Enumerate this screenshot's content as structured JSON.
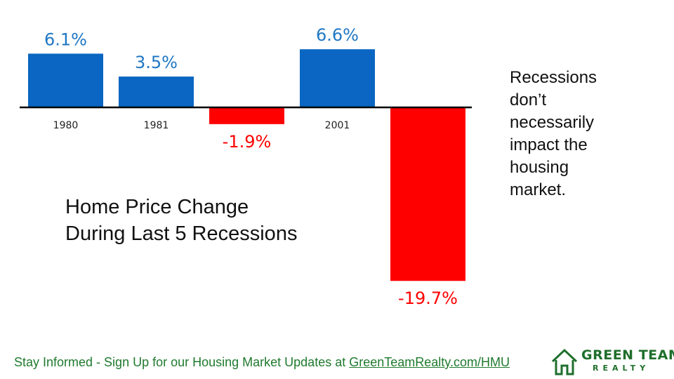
{
  "chart_data": {
    "type": "bar",
    "categories": [
      "1980",
      "1981",
      "",
      "2001",
      ""
    ],
    "values": [
      6.1,
      3.5,
      -1.9,
      6.6,
      -19.7
    ],
    "value_labels": [
      "6.1%",
      "3.5%",
      "-1.9%",
      "6.6%",
      "-19.7%"
    ],
    "title": "Home Price Change During Last 5 Recessions",
    "xlabel": "",
    "ylabel": "",
    "ylim": [
      -19.7,
      6.6
    ],
    "grid": false,
    "colors": {
      "positive": "#0a66c2",
      "negative": "#ff0000",
      "positive_label": "#1f77c4",
      "negative_label": "#ff0000"
    }
  },
  "title_lines": [
    "Home Price Change",
    "During Last 5 Recessions"
  ],
  "side_note_lines": [
    "Recessions",
    "don’t",
    "necessarily",
    "impact the",
    "housing",
    "market."
  ],
  "footer": {
    "text": "Stay Informed - Sign Up for our Housing Market Updates at ",
    "link": "GreenTeamRealty.com/HMU"
  },
  "logo": {
    "line1": "GREEN TEAM",
    "line2": "REALTY",
    "color": "#1f6f2c",
    "icon": "house-icon"
  }
}
